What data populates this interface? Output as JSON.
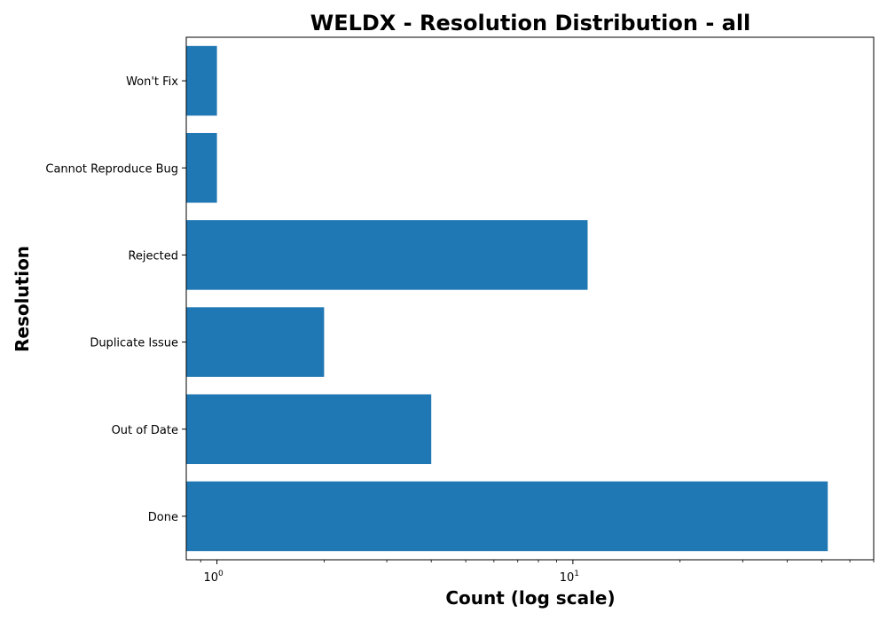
{
  "chart_data": {
    "type": "bar",
    "orientation": "horizontal",
    "title": "WELDX - Resolution Distribution - all",
    "xlabel": "Count (log scale)",
    "ylabel": "Resolution",
    "x_scale": "log",
    "xlim": [
      0.82,
      70
    ],
    "x_tick_values": [
      1,
      10
    ],
    "x_tick_labels": [
      "10^0",
      "10^1"
    ],
    "categories": [
      "Done",
      "Out of Date",
      "Duplicate Issue",
      "Rejected",
      "Cannot Reproduce Bug",
      "Won't Fix"
    ],
    "values": [
      52,
      4,
      2,
      11,
      1,
      1
    ],
    "bar_color": "#1f77b4",
    "grid": false,
    "legend": "none"
  }
}
